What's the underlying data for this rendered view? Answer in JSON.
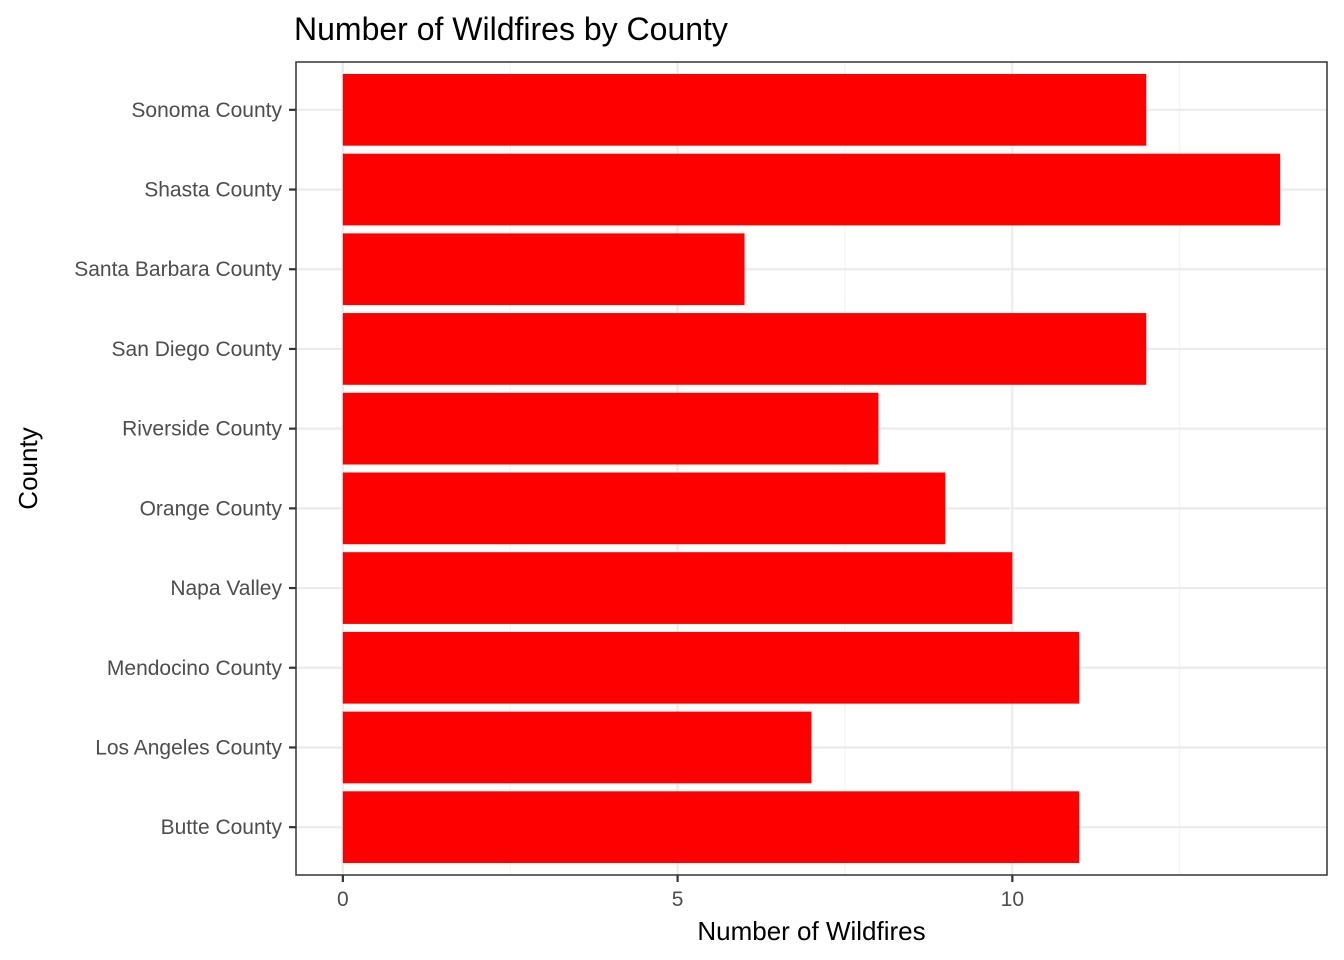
{
  "chart_data": {
    "type": "bar",
    "orientation": "horizontal",
    "title": "Number of Wildfires by County",
    "xlabel": "Number of Wildfires",
    "ylabel": "County",
    "categories": [
      "Butte County",
      "Los Angeles County",
      "Mendocino County",
      "Napa Valley",
      "Orange County",
      "Riverside County",
      "San Diego County",
      "Santa Barbara County",
      "Shasta County",
      "Sonoma County"
    ],
    "values": [
      11,
      7,
      11,
      10,
      9,
      8,
      12,
      6,
      14,
      12
    ],
    "xlim": [
      -0.7,
      14.7
    ],
    "x_ticks": [
      0,
      5,
      10
    ],
    "x_tick_labels": [
      "0",
      "5",
      "10"
    ],
    "x_minor_ticks": [
      2.5,
      7.5,
      12.5
    ],
    "bar_color": "#ff0000",
    "grid": true,
    "legend": "none"
  }
}
